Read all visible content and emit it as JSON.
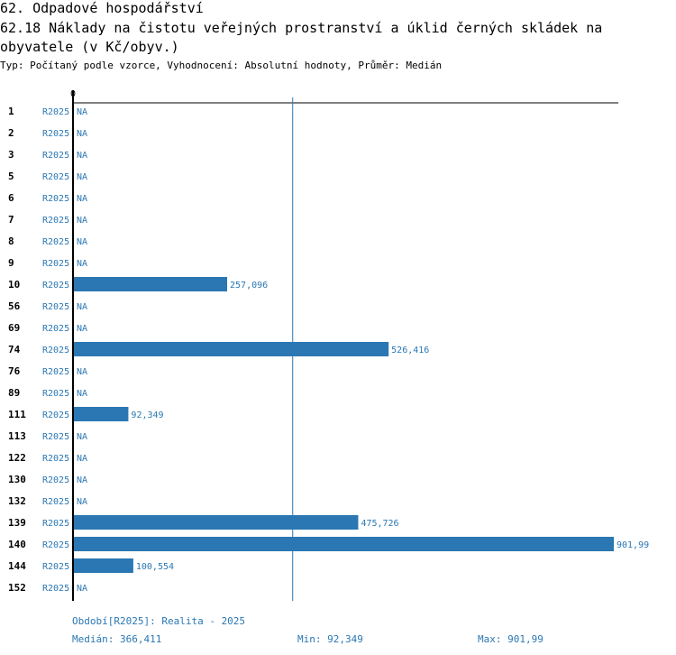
{
  "header": {
    "section_title": "62. Odpadové hospodářství",
    "chart_title": "62.18 Náklady na čistotu veřejných prostranství a úklid černých skládek na obyvatele (v Kč/obyv.)",
    "subtitle": "Typ: Počítaný podle vzorce, Vyhodnocení: Absolutní hodnoty, Průměr: Medián"
  },
  "chart_data": {
    "type": "bar",
    "orientation": "horizontal",
    "title": "62.18 Náklady na čistotu veřejných prostranství a úklid černých skládek na obyvatele (v Kč/obyv.)",
    "period_label": "R2025",
    "axis_zero_label": "0",
    "xlim": [
      0,
      901.99
    ],
    "median": 366.411,
    "categories": [
      "1",
      "2",
      "3",
      "5",
      "6",
      "7",
      "8",
      "9",
      "10",
      "56",
      "69",
      "74",
      "76",
      "89",
      "111",
      "113",
      "122",
      "130",
      "132",
      "139",
      "140",
      "144",
      "152"
    ],
    "values": [
      null,
      null,
      null,
      null,
      null,
      null,
      null,
      null,
      257.096,
      null,
      null,
      526.416,
      null,
      null,
      92.349,
      null,
      null,
      null,
      null,
      475.726,
      901.99,
      100.554,
      null
    ],
    "value_labels": [
      "NA",
      "NA",
      "NA",
      "NA",
      "NA",
      "NA",
      "NA",
      "NA",
      "257,096",
      "NA",
      "NA",
      "526,416",
      "NA",
      "NA",
      "92,349",
      "NA",
      "NA",
      "NA",
      "NA",
      "475,726",
      "901,99",
      "100,554",
      "NA"
    ],
    "colors": {
      "bar": "#2a77b3",
      "text": "#2a77b3",
      "axis": "#000000",
      "median_line": "#2a77b3"
    }
  },
  "footer": {
    "period": "Období[R2025]: Realita - 2025",
    "median": "Medián: 366,411",
    "min": "Min: 92,349",
    "max": "Max: 901,99"
  }
}
